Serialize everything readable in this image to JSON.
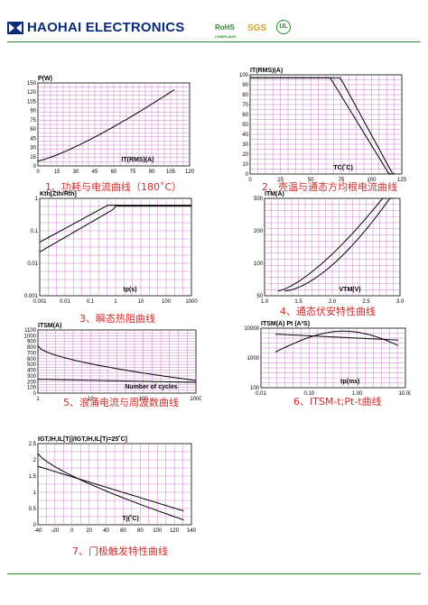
{
  "header": {
    "company": "HAOHAI ELECTRONICS",
    "cert_rohs": "RoHS",
    "cert_rohs_sub": "COMPLIANT",
    "cert_sgs": "SGS",
    "cert_ul": "UL"
  },
  "colors": {
    "brand": "#0a2a7a",
    "accent": "#d42a2a",
    "grid": "#c060c0",
    "rule": "#2a8a2a"
  },
  "charts": [
    {
      "id": "c1",
      "caption": "1、功耗与电流曲线（180˚C）",
      "ylabel": "P(W)",
      "xlabel": "IT(RMS)(A)",
      "yticks": [
        "150",
        "120",
        "105",
        "90",
        "75",
        "60",
        "45",
        "30",
        "15",
        "0"
      ],
      "xticks": [
        "0",
        "15",
        "30",
        "45",
        "60",
        "75",
        "90",
        "105",
        "120"
      ]
    },
    {
      "id": "c2",
      "caption": "2、壳温与通态方均根电流曲线",
      "ylabel": "IT(RMS)(A)",
      "xlabel": "TC(˚C)",
      "yticks": [
        "100",
        "90",
        "80",
        "70",
        "60",
        "50",
        "40",
        "30",
        "20",
        "10",
        "0"
      ],
      "xticks": [
        "0",
        "25",
        "50",
        "75",
        "100",
        "125"
      ]
    },
    {
      "id": "c3",
      "caption": "3、瞬态热阻曲线",
      "ylabel": "Kth[Zth/Rth]",
      "xlabel": "tp(s)",
      "yticks": [
        "1",
        "0.1",
        "0.01",
        "0.001"
      ],
      "xticks": [
        "0.001",
        "0.01",
        "0.1",
        "1",
        "10",
        "100",
        "1000"
      ]
    },
    {
      "id": "c4",
      "caption": "4、通态伏安特性曲线",
      "ylabel": "ITM(A)",
      "xlabel": "VTM(V)",
      "yticks": [
        "500",
        "200",
        "100",
        "50"
      ],
      "xticks": [
        "1.0",
        "1.5",
        "2.0",
        "2.5",
        "3.0"
      ]
    },
    {
      "id": "c5",
      "caption": "5、浪涌电流与周波数曲线",
      "ylabel": "ITSM(A)",
      "xlabel": "Number of cycles",
      "yticks": [
        "1100",
        "1000",
        "900",
        "800",
        "700",
        "600",
        "500",
        "400",
        "300",
        "200",
        "100",
        "0"
      ],
      "xticks": [
        "1",
        "10",
        "100",
        "1000"
      ]
    },
    {
      "id": "c6",
      "caption": "6、ITSM-t;Pt-t曲线",
      "ylabel": "ITSM(A)  Pt (A²S)",
      "xlabel": "tp(ms)",
      "yticks": [
        "10000",
        "1000",
        "100"
      ],
      "xticks": [
        "0.01",
        "0.10",
        "1.00",
        "10.00"
      ]
    },
    {
      "id": "c7",
      "caption": "7、门极触发特性曲线",
      "ylabel": "IGT,IH,IL[Tj]/IGT,IH,IL[Tj=25˚C]",
      "xlabel": "Tj(˚C)",
      "yticks": [
        "2.5",
        "2",
        "1.5",
        "1",
        "0.5",
        "0"
      ],
      "xticks": [
        "-40",
        "-20",
        "0",
        "20",
        "40",
        "60",
        "80",
        "100",
        "120",
        "140"
      ]
    }
  ]
}
